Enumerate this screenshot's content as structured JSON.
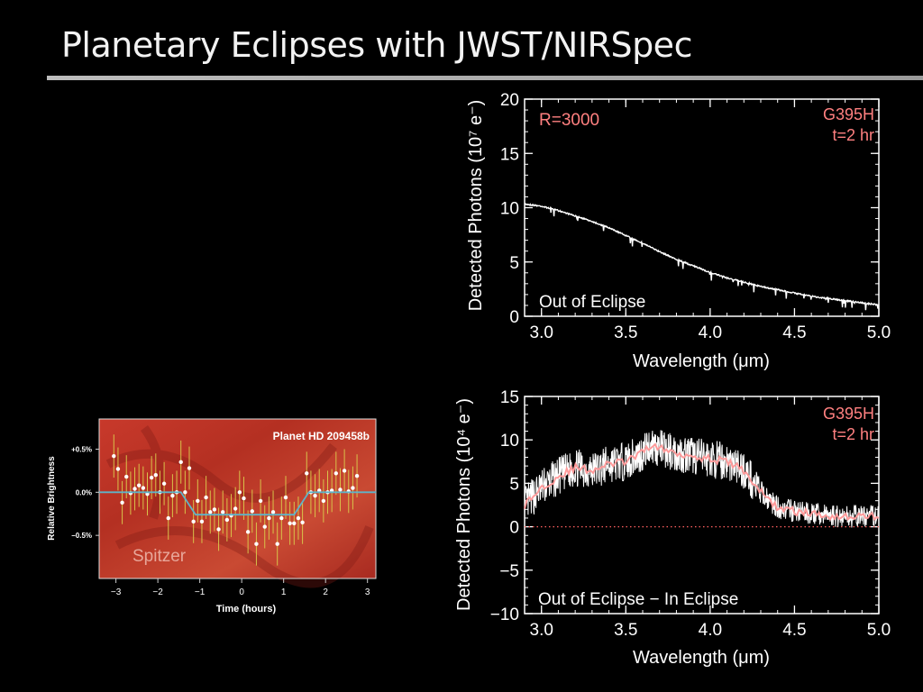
{
  "slide": {
    "title": "Planetary Eclipses with JWST/NIRSpec"
  },
  "colors": {
    "background": "#000000",
    "annotation": "#ff8080",
    "spectrum": "#ffffff",
    "binned": "#ff9a9a"
  },
  "chart_data": [
    {
      "type": "line",
      "xlabel": "Wavelength (μm)",
      "ylabel": "Detected Photons  (10⁷ e⁻)",
      "xlim": [
        2.9,
        5.0
      ],
      "ylim": [
        0,
        20
      ],
      "xticks": [
        "3.0",
        "3.5",
        "4.0",
        "4.5",
        "5.0"
      ],
      "yticks": [
        "0",
        "5",
        "10",
        "15",
        "20"
      ],
      "annotations": {
        "resolution": "R=3000",
        "grating": "G395H",
        "time": "t=2 hr",
        "label": "Out of Eclipse"
      },
      "series": [
        {
          "x": [
            2.9,
            3.0,
            3.1,
            3.2,
            3.3,
            3.4,
            3.5,
            3.6,
            3.7,
            3.8,
            3.9,
            4.0,
            4.1,
            4.2,
            4.3,
            4.4,
            4.5,
            4.6,
            4.7,
            4.8,
            4.9,
            5.0
          ],
          "values": [
            10.4,
            10.2,
            9.8,
            9.3,
            8.8,
            8.2,
            7.5,
            6.8,
            6.0,
            5.3,
            4.7,
            4.1,
            3.6,
            3.2,
            2.8,
            2.5,
            2.2,
            1.9,
            1.7,
            1.5,
            1.3,
            1.1
          ]
        }
      ]
    },
    {
      "type": "line",
      "xlabel": "Wavelength (μm)",
      "ylabel": "Detected Photons  (10⁴ e⁻)",
      "xlim": [
        2.9,
        5.0
      ],
      "ylim": [
        -10,
        15
      ],
      "xticks": [
        "3.0",
        "3.5",
        "4.0",
        "4.5",
        "5.0"
      ],
      "yticks": [
        "−10",
        "−5",
        "0",
        "5",
        "10",
        "15"
      ],
      "annotations": {
        "grating": "G395H",
        "time": "t=2 hr",
        "label": "Out of Eclipse − In Eclipse"
      },
      "zero_line": 0,
      "series": [
        {
          "x": [
            2.9,
            3.0,
            3.1,
            3.2,
            3.3,
            3.4,
            3.5,
            3.6,
            3.65,
            3.7,
            3.8,
            3.9,
            4.0,
            4.1,
            4.2,
            4.3,
            4.4,
            4.5,
            4.6,
            4.7,
            4.8,
            4.9,
            5.0
          ],
          "values": [
            2.5,
            4.5,
            5.8,
            6.8,
            6.5,
            7.2,
            7.5,
            8.5,
            9.5,
            9.0,
            8.5,
            8.2,
            7.8,
            7.5,
            6.5,
            4.0,
            2.2,
            1.8,
            1.5,
            1.3,
            1.2,
            1.2,
            1.3
          ]
        }
      ]
    },
    {
      "type": "scatter",
      "title": "Planet HD 209458b",
      "watermark": "Spitzer",
      "xlabel": "Time (hours)",
      "ylabel": "Relative Brightness",
      "xlim": [
        -3.4,
        3.2
      ],
      "ylim": [
        -1.0,
        0.85
      ],
      "xticks": [
        "−3",
        "−2",
        "−1",
        "0",
        "1",
        "2",
        "3"
      ],
      "yticks": [
        "+0.5%",
        "0.0%",
        "−0.5%"
      ],
      "model": {
        "x": [
          -3.4,
          -1.45,
          -1.1,
          1.25,
          1.6,
          3.2
        ],
        "values": [
          0.0,
          0.0,
          -0.26,
          -0.26,
          0.0,
          0.0
        ]
      },
      "points": {
        "x": [
          -3.05,
          -2.95,
          -2.85,
          -2.75,
          -2.65,
          -2.55,
          -2.45,
          -2.35,
          -2.25,
          -2.15,
          -2.05,
          -1.95,
          -1.85,
          -1.75,
          -1.65,
          -1.55,
          -1.45,
          -1.35,
          -1.25,
          -1.15,
          -1.05,
          -0.95,
          -0.85,
          -0.75,
          -0.65,
          -0.55,
          -0.45,
          -0.35,
          -0.25,
          -0.15,
          -0.05,
          0.05,
          0.15,
          0.25,
          0.35,
          0.45,
          0.55,
          0.65,
          0.75,
          0.85,
          0.95,
          1.05,
          1.15,
          1.25,
          1.35,
          1.45,
          1.55,
          1.65,
          1.75,
          1.85,
          1.95,
          2.05,
          2.15,
          2.25,
          2.35,
          2.45,
          2.55,
          2.65,
          2.75
        ],
        "values": [
          0.42,
          0.27,
          -0.12,
          0.18,
          -0.01,
          0.04,
          0.08,
          0.05,
          -0.02,
          0.17,
          0.2,
          0.0,
          0.1,
          -0.3,
          -0.04,
          0.0,
          0.35,
          0.0,
          0.28,
          -0.34,
          -0.1,
          -0.34,
          -0.06,
          -0.23,
          -0.2,
          -0.43,
          -0.23,
          -0.32,
          -0.27,
          -0.19,
          0.0,
          -0.07,
          -0.46,
          -0.22,
          -0.6,
          -0.1,
          -0.4,
          -0.3,
          -0.23,
          -0.6,
          -0.3,
          -0.06,
          -0.36,
          -0.36,
          -0.3,
          -0.35,
          0.22,
          0.0,
          -0.04,
          0.02,
          -0.1,
          0.0,
          0.02,
          0.22,
          0.03,
          0.25,
          0.01,
          0.05,
          0.19
        ],
        "errors": [
          0.25,
          0.25,
          0.25,
          0.25,
          0.25,
          0.25,
          0.25,
          0.25,
          0.25,
          0.25,
          0.25,
          0.25,
          0.25,
          0.25,
          0.25,
          0.25,
          0.25,
          0.25,
          0.25,
          0.25,
          0.25,
          0.25,
          0.25,
          0.25,
          0.25,
          0.25,
          0.25,
          0.25,
          0.25,
          0.25,
          0.25,
          0.25,
          0.25,
          0.25,
          0.25,
          0.25,
          0.25,
          0.25,
          0.25,
          0.25,
          0.25,
          0.25,
          0.25,
          0.25,
          0.25,
          0.25,
          0.25,
          0.25,
          0.25,
          0.25,
          0.25,
          0.25,
          0.25,
          0.25,
          0.25,
          0.25,
          0.25,
          0.25,
          0.25
        ]
      }
    }
  ]
}
